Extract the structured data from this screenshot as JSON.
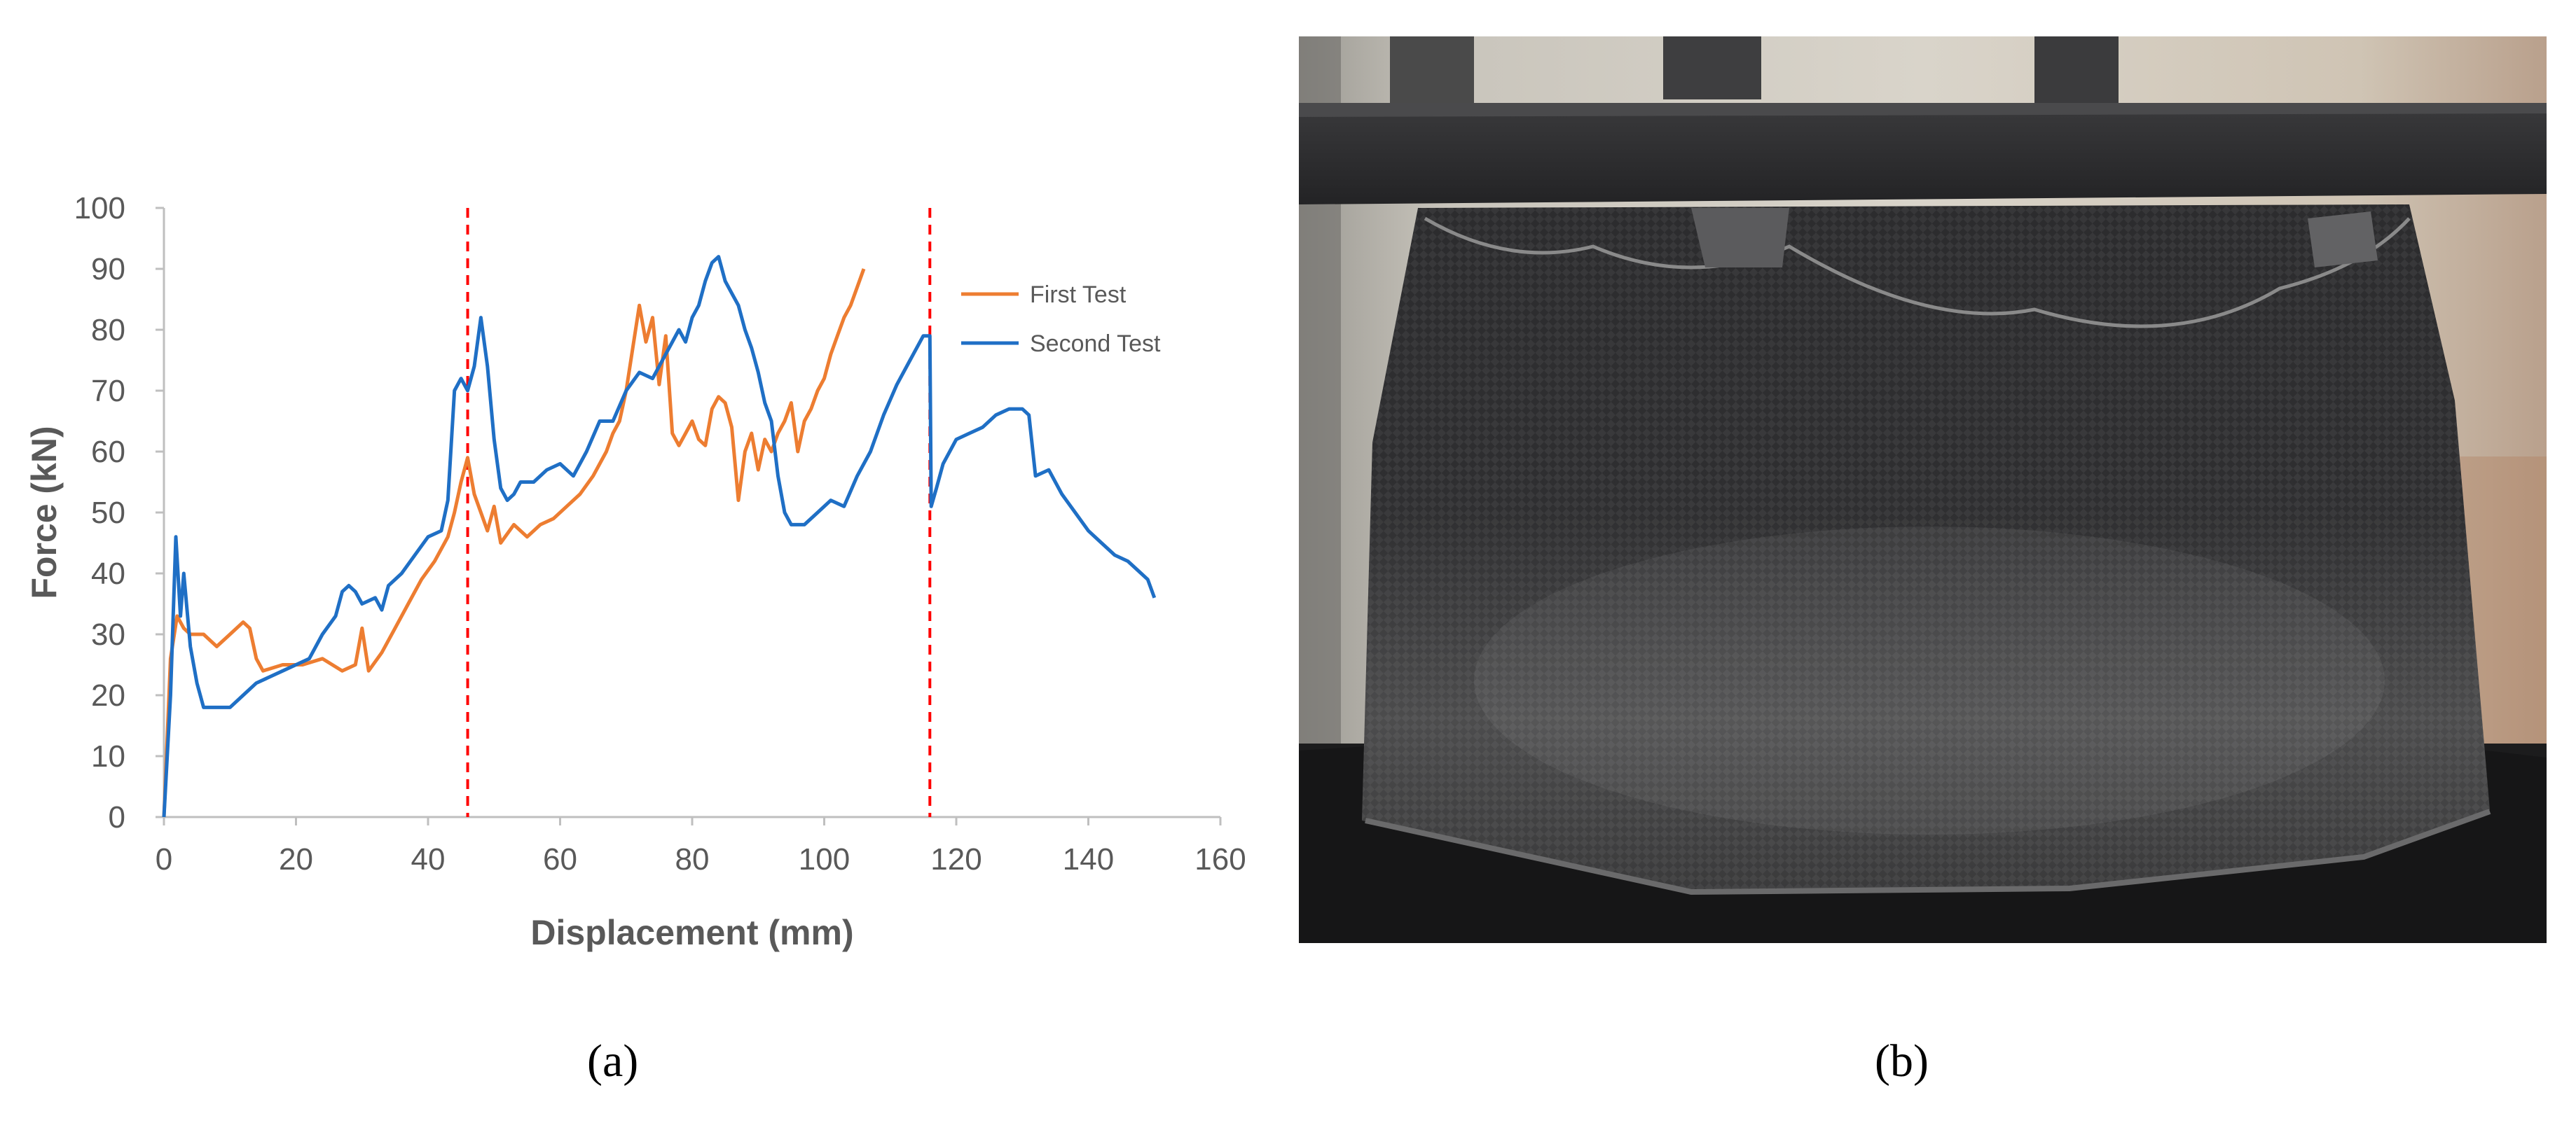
{
  "chart_data": {
    "type": "line",
    "xlabel": "Displacement (mm)",
    "ylabel": "Force (kN)",
    "xlim": [
      0,
      160
    ],
    "ylim": [
      0,
      100
    ],
    "x_ticks": [
      "0",
      "20",
      "40",
      "60",
      "80",
      "100",
      "120",
      "140",
      "160"
    ],
    "y_ticks": [
      "0",
      "10",
      "20",
      "30",
      "40",
      "50",
      "60",
      "70",
      "80",
      "90",
      "100"
    ],
    "grid": false,
    "legend_position": "top-right",
    "reference_lines": [
      46,
      116
    ],
    "series": [
      {
        "name": "First Test",
        "color": "#ED7D31",
        "points": [
          [
            0,
            0
          ],
          [
            1,
            26
          ],
          [
            2,
            33
          ],
          [
            3,
            31
          ],
          [
            4,
            30
          ],
          [
            6,
            30
          ],
          [
            8,
            28
          ],
          [
            10,
            30
          ],
          [
            12,
            32
          ],
          [
            13,
            31
          ],
          [
            14,
            26
          ],
          [
            15,
            24
          ],
          [
            18,
            25
          ],
          [
            21,
            25
          ],
          [
            24,
            26
          ],
          [
            27,
            24
          ],
          [
            29,
            25
          ],
          [
            30,
            31
          ],
          [
            31,
            24
          ],
          [
            33,
            27
          ],
          [
            35,
            31
          ],
          [
            37,
            35
          ],
          [
            39,
            39
          ],
          [
            41,
            42
          ],
          [
            43,
            46
          ],
          [
            44,
            50
          ],
          [
            45,
            55
          ],
          [
            46,
            59
          ],
          [
            47,
            53
          ],
          [
            48,
            50
          ],
          [
            49,
            47
          ],
          [
            50,
            51
          ],
          [
            51,
            45
          ],
          [
            53,
            48
          ],
          [
            55,
            46
          ],
          [
            57,
            48
          ],
          [
            59,
            49
          ],
          [
            61,
            51
          ],
          [
            63,
            53
          ],
          [
            65,
            56
          ],
          [
            67,
            60
          ],
          [
            68,
            63
          ],
          [
            69,
            65
          ],
          [
            70,
            70
          ],
          [
            71,
            77
          ],
          [
            72,
            84
          ],
          [
            73,
            78
          ],
          [
            74,
            82
          ],
          [
            75,
            71
          ],
          [
            76,
            79
          ],
          [
            77,
            63
          ],
          [
            78,
            61
          ],
          [
            79,
            63
          ],
          [
            80,
            65
          ],
          [
            81,
            62
          ],
          [
            82,
            61
          ],
          [
            83,
            67
          ],
          [
            84,
            69
          ],
          [
            85,
            68
          ],
          [
            86,
            64
          ],
          [
            87,
            52
          ],
          [
            88,
            60
          ],
          [
            89,
            63
          ],
          [
            90,
            57
          ],
          [
            91,
            62
          ],
          [
            92,
            60
          ],
          [
            93,
            63
          ],
          [
            94,
            65
          ],
          [
            95,
            68
          ],
          [
            96,
            60
          ],
          [
            97,
            65
          ],
          [
            98,
            67
          ],
          [
            99,
            70
          ],
          [
            100,
            72
          ],
          [
            101,
            76
          ],
          [
            102,
            79
          ],
          [
            103,
            82
          ],
          [
            104,
            84
          ],
          [
            105,
            87
          ],
          [
            106,
            90
          ]
        ]
      },
      {
        "name": "Second Test",
        "color": "#1F6FC5",
        "points": [
          [
            0,
            0
          ],
          [
            1,
            20
          ],
          [
            1.8,
            46
          ],
          [
            2.5,
            33
          ],
          [
            3,
            40
          ],
          [
            4,
            28
          ],
          [
            5,
            22
          ],
          [
            6,
            18
          ],
          [
            8,
            18
          ],
          [
            10,
            18
          ],
          [
            12,
            20
          ],
          [
            14,
            22
          ],
          [
            16,
            23
          ],
          [
            18,
            24
          ],
          [
            20,
            25
          ],
          [
            22,
            26
          ],
          [
            24,
            30
          ],
          [
            26,
            33
          ],
          [
            27,
            37
          ],
          [
            28,
            38
          ],
          [
            29,
            37
          ],
          [
            30,
            35
          ],
          [
            32,
            36
          ],
          [
            33,
            34
          ],
          [
            34,
            38
          ],
          [
            36,
            40
          ],
          [
            38,
            43
          ],
          [
            40,
            46
          ],
          [
            42,
            47
          ],
          [
            43,
            52
          ],
          [
            44,
            70
          ],
          [
            45,
            72
          ],
          [
            46,
            70
          ],
          [
            47,
            74
          ],
          [
            48,
            82
          ],
          [
            49,
            74
          ],
          [
            50,
            62
          ],
          [
            51,
            54
          ],
          [
            52,
            52
          ],
          [
            53,
            53
          ],
          [
            54,
            55
          ],
          [
            56,
            55
          ],
          [
            58,
            57
          ],
          [
            60,
            58
          ],
          [
            62,
            56
          ],
          [
            64,
            60
          ],
          [
            66,
            65
          ],
          [
            68,
            65
          ],
          [
            70,
            70
          ],
          [
            72,
            73
          ],
          [
            74,
            72
          ],
          [
            76,
            76
          ],
          [
            78,
            80
          ],
          [
            79,
            78
          ],
          [
            80,
            82
          ],
          [
            81,
            84
          ],
          [
            82,
            88
          ],
          [
            83,
            91
          ],
          [
            84,
            92
          ],
          [
            85,
            88
          ],
          [
            86,
            86
          ],
          [
            87,
            84
          ],
          [
            88,
            80
          ],
          [
            89,
            77
          ],
          [
            90,
            73
          ],
          [
            91,
            68
          ],
          [
            92,
            65
          ],
          [
            93,
            56
          ],
          [
            94,
            50
          ],
          [
            95,
            48
          ],
          [
            97,
            48
          ],
          [
            99,
            50
          ],
          [
            101,
            52
          ],
          [
            103,
            51
          ],
          [
            105,
            56
          ],
          [
            107,
            60
          ],
          [
            109,
            66
          ],
          [
            111,
            71
          ],
          [
            113,
            75
          ],
          [
            115,
            79
          ],
          [
            116,
            79
          ],
          [
            116.2,
            51
          ],
          [
            117,
            54
          ],
          [
            118,
            58
          ],
          [
            120,
            62
          ],
          [
            122,
            63
          ],
          [
            124,
            64
          ],
          [
            126,
            66
          ],
          [
            128,
            67
          ],
          [
            130,
            67
          ],
          [
            131,
            66
          ],
          [
            132,
            56
          ],
          [
            134,
            57
          ],
          [
            136,
            53
          ],
          [
            138,
            50
          ],
          [
            140,
            47
          ],
          [
            142,
            45
          ],
          [
            144,
            43
          ],
          [
            146,
            42
          ],
          [
            148,
            40
          ],
          [
            149,
            39
          ],
          [
            150,
            36
          ]
        ]
      }
    ]
  },
  "captions": {
    "a": "(a)",
    "b": "(b)"
  }
}
